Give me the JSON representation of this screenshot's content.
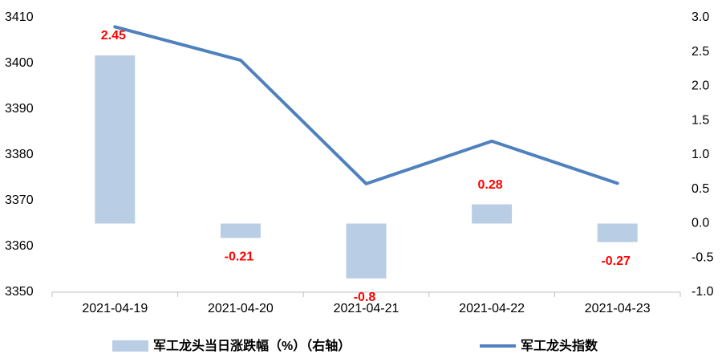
{
  "chart_data": {
    "type": "combo",
    "categories": [
      "2021-04-19",
      "2021-04-20",
      "2021-04-21",
      "2021-04-22",
      "2021-04-23"
    ],
    "series": [
      {
        "name": "军工龙头当日涨跌幅（%）（右轴）",
        "type": "bar",
        "axis": "y2",
        "color": "#b9cde5",
        "values": [
          2.45,
          -0.21,
          -0.8,
          0.28,
          -0.27
        ],
        "label_color": "#ff0000"
      },
      {
        "name": "军工龙头指数",
        "type": "line",
        "color": "#4f81bd",
        "values": [
          3408,
          3400.7,
          3373.7,
          3383,
          3373.8
        ]
      }
    ],
    "ylim": [
      3350,
      3410
    ],
    "yticks": [
      3350,
      3360,
      3370,
      3380,
      3390,
      3400,
      3410
    ],
    "y2lim": [
      -1,
      3
    ],
    "y2ticks": [
      {
        "value": -1,
        "label": "-1.0"
      },
      -0.5,
      {
        "value": 0,
        "label": "0.0"
      },
      0.5,
      {
        "value": 1,
        "label": "1.0"
      },
      1.5,
      {
        "value": 2,
        "label": "2.0"
      },
      2.5,
      {
        "value": 3,
        "label": "3.0"
      }
    ],
    "grid": false,
    "legend": "bottom"
  }
}
